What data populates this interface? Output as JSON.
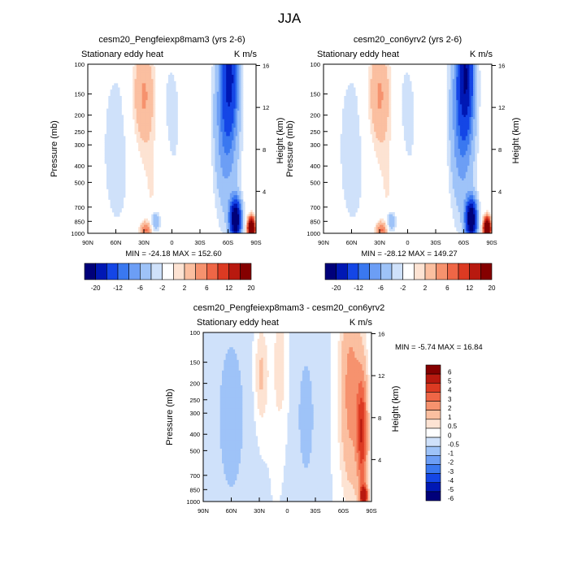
{
  "page_title": "JJA",
  "chart_data": [
    {
      "type": "heatmap",
      "title": "cesm20_Pengfeiexp8mam3 (yrs 2-6)",
      "left_string": "Stationary eddy heat",
      "right_string": "K m/s",
      "xlabel": "",
      "ylabel": "Pressure (mb)",
      "y2label": "Height (km)",
      "x_tick_labels": [
        "90N",
        "60N",
        "30N",
        "0",
        "30S",
        "60S",
        "90S"
      ],
      "y_tick_labels": [
        "100",
        "150",
        "200",
        "250",
        "300",
        "400",
        "500",
        "700",
        "850",
        "1000"
      ],
      "y_ticks_mb": [
        100,
        150,
        200,
        250,
        300,
        400,
        500,
        700,
        850,
        1000
      ],
      "height_tick_labels": [
        "16",
        "12",
        "8",
        "4"
      ],
      "height_ticks_km": [
        16,
        12,
        8,
        4
      ],
      "ylim": [
        1000,
        100
      ],
      "xlim": [
        90,
        -90
      ],
      "min_max_text": "MIN = -24.18   MAX = 152.60",
      "min": -24.18,
      "max": 152.6,
      "colorbar_levels": [
        -20,
        -16,
        -12,
        -8,
        -6,
        -4,
        -2,
        -1,
        1,
        2,
        4,
        6,
        8,
        12,
        16,
        20
      ],
      "colorbar_labels": [
        "-20",
        "-12",
        "-6",
        "-2",
        "2",
        "6",
        "12",
        "20"
      ]
    },
    {
      "type": "heatmap",
      "title": "cesm20_con6yrv2 (yrs 2-6)",
      "left_string": "Stationary eddy heat",
      "right_string": "K m/s",
      "xlabel": "",
      "ylabel": "Pressure (mb)",
      "y2label": "Height (km)",
      "x_tick_labels": [
        "90N",
        "60N",
        "30N",
        "0",
        "30S",
        "60S",
        "90S"
      ],
      "y_tick_labels": [
        "100",
        "150",
        "200",
        "250",
        "300",
        "400",
        "500",
        "700",
        "850",
        "1000"
      ],
      "y_ticks_mb": [
        100,
        150,
        200,
        250,
        300,
        400,
        500,
        700,
        850,
        1000
      ],
      "height_tick_labels": [
        "16",
        "12",
        "8",
        "4"
      ],
      "height_ticks_km": [
        16,
        12,
        8,
        4
      ],
      "ylim": [
        1000,
        100
      ],
      "xlim": [
        90,
        -90
      ],
      "min_max_text": "MIN = -28.12   MAX = 149.27",
      "min": -28.12,
      "max": 149.27,
      "colorbar_levels": [
        -20,
        -16,
        -12,
        -8,
        -6,
        -4,
        -2,
        -1,
        1,
        2,
        4,
        6,
        8,
        12,
        16,
        20
      ],
      "colorbar_labels": [
        "-20",
        "-12",
        "-6",
        "-2",
        "2",
        "6",
        "12",
        "20"
      ]
    },
    {
      "type": "heatmap",
      "title": "cesm20_Pengfeiexp8mam3 - cesm20_con6yrv2",
      "left_string": "Stationary eddy heat",
      "right_string": "K m/s",
      "xlabel": "",
      "ylabel": "Pressure (mb)",
      "y2label": "Height (km)",
      "x_tick_labels": [
        "90N",
        "60N",
        "30N",
        "0",
        "30S",
        "60S",
        "90S"
      ],
      "y_tick_labels": [
        "100",
        "150",
        "200",
        "250",
        "300",
        "400",
        "500",
        "700",
        "850",
        "1000"
      ],
      "y_ticks_mb": [
        100,
        150,
        200,
        250,
        300,
        400,
        500,
        700,
        850,
        1000
      ],
      "height_tick_labels": [
        "16",
        "12",
        "8",
        "4"
      ],
      "height_ticks_km": [
        16,
        12,
        8,
        4
      ],
      "ylim": [
        1000,
        100
      ],
      "xlim": [
        90,
        -90
      ],
      "min_max_text": "MIN =  -5.74   MAX =  16.84",
      "min": -5.74,
      "max": 16.84,
      "colorbar_levels": [
        -6,
        -5,
        -4,
        -3,
        -2,
        -1,
        -0.5,
        0,
        0.5,
        1,
        2,
        3,
        4,
        5,
        6
      ],
      "colorbar_labels": [
        "6",
        "5",
        "4",
        "3",
        "2",
        "1",
        "0.5",
        "0",
        "-0.5",
        "-1",
        "-2",
        "-3",
        "-4",
        "-5",
        "-6"
      ]
    }
  ],
  "colors": {
    "abs_scale": [
      "#00007a",
      "#0018b4",
      "#1446e6",
      "#3a78f0",
      "#6c9ef5",
      "#9ec3f8",
      "#cfe1fa",
      "#ffffff",
      "#fde3d3",
      "#fbbfa0",
      "#f6926e",
      "#ef6646",
      "#dc3a22",
      "#b8190f",
      "#850000"
    ],
    "diff_scale": [
      "#850000",
      "#b8190f",
      "#dc3a22",
      "#ef6646",
      "#f6926e",
      "#fbbfa0",
      "#fde3d3",
      "#ffffff",
      "#cfe1fa",
      "#9ec3f8",
      "#6c9ef5",
      "#3a78f0",
      "#1446e6",
      "#0018b4",
      "#00007a"
    ]
  }
}
